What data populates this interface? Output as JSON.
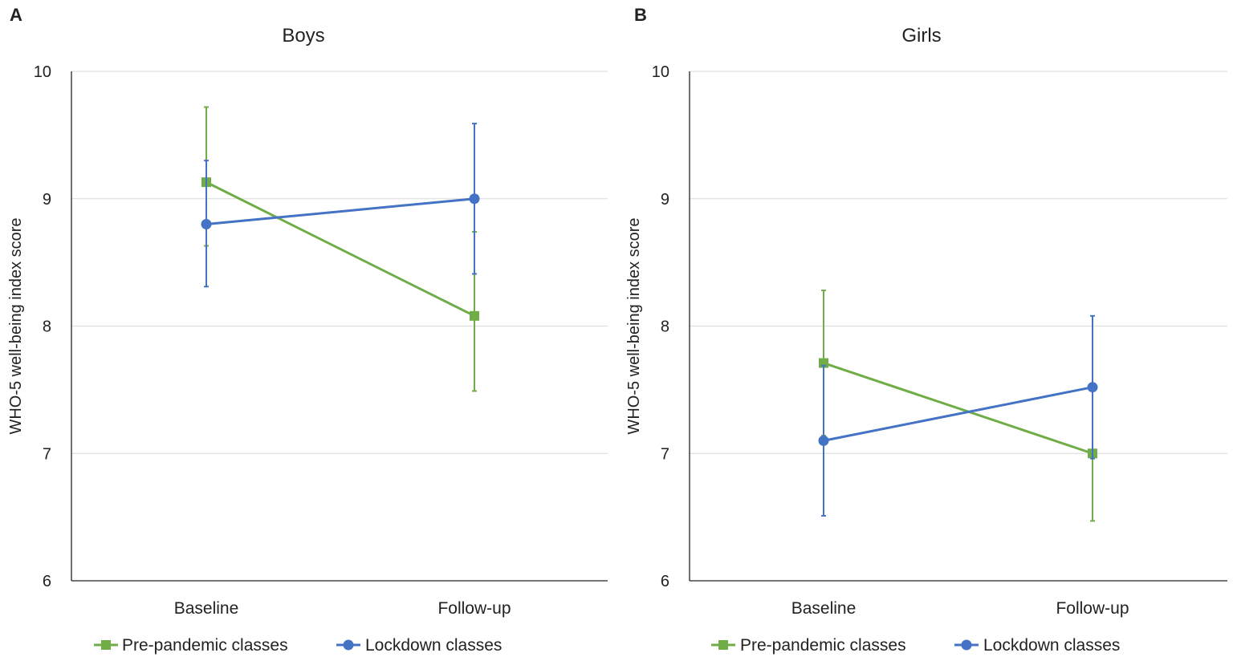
{
  "colors": {
    "pre_pandemic": "#70ad47",
    "lockdown": "#4472c4",
    "grid": "#d9d9d9",
    "axis": "#222222"
  },
  "chart_data": [
    {
      "type": "line",
      "panel_letter": "A",
      "title": "Boys",
      "xlabel": "",
      "ylabel": "WHO-5 well-being index score",
      "categories": [
        "Baseline",
        "Follow-up"
      ],
      "ylim": [
        6,
        10
      ],
      "yticks": [
        6,
        7,
        8,
        9,
        10
      ],
      "grid": true,
      "legend_position": "bottom",
      "series": [
        {
          "name": "Pre-pandemic classes",
          "color_key": "pre_pandemic",
          "marker": "square",
          "values": [
            9.13,
            8.08
          ],
          "error_low": [
            8.63,
            7.49
          ],
          "error_high": [
            9.72,
            8.74
          ]
        },
        {
          "name": "Lockdown classes",
          "color_key": "lockdown",
          "marker": "circle",
          "values": [
            8.8,
            9.0
          ],
          "error_low": [
            8.31,
            8.41
          ],
          "error_high": [
            9.3,
            9.59
          ]
        }
      ]
    },
    {
      "type": "line",
      "panel_letter": "B",
      "title": "Girls",
      "xlabel": "",
      "ylabel": "WHO-5 well-being index score",
      "categories": [
        "Baseline",
        "Follow-up"
      ],
      "ylim": [
        6,
        10
      ],
      "yticks": [
        6,
        7,
        8,
        9,
        10
      ],
      "grid": true,
      "legend_position": "bottom",
      "series": [
        {
          "name": "Pre-pandemic classes",
          "color_key": "pre_pandemic",
          "marker": "square",
          "values": [
            7.71,
            7.0
          ],
          "error_low": [
            7.14,
            6.47
          ],
          "error_high": [
            8.28,
            7.54
          ]
        },
        {
          "name": "Lockdown classes",
          "color_key": "lockdown",
          "marker": "circle",
          "values": [
            7.1,
            7.52
          ],
          "error_low": [
            6.51,
            6.96
          ],
          "error_high": [
            7.69,
            8.08
          ]
        }
      ]
    }
  ]
}
